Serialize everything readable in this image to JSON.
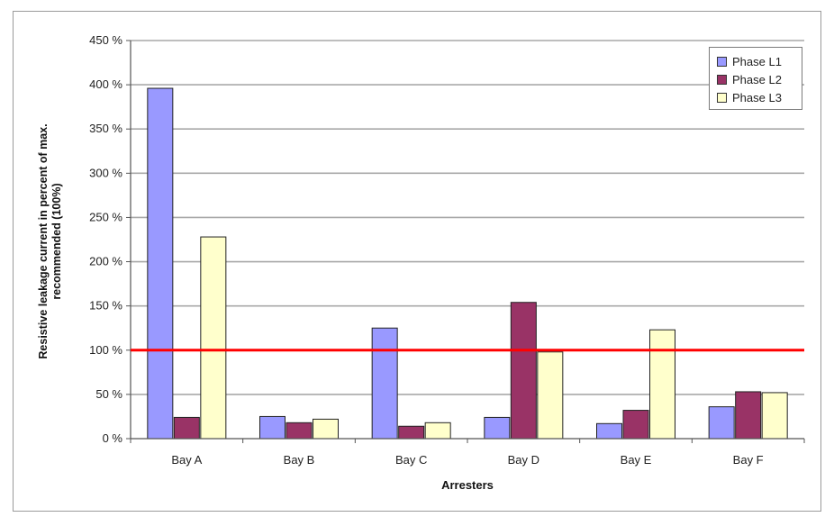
{
  "chart_data": {
    "type": "bar",
    "title": "",
    "xlabel": "Arresters",
    "ylabel": "Resistive leakage current in percent of max. recommended (100%)",
    "categories": [
      "Bay A",
      "Bay B",
      "Bay C",
      "Bay D",
      "Bay E",
      "Bay F"
    ],
    "series": [
      {
        "name": "Phase L1",
        "color": "#9999ff",
        "values": [
          396,
          25,
          125,
          24,
          17,
          36
        ]
      },
      {
        "name": "Phase L2",
        "color": "#993366",
        "values": [
          24,
          18,
          14,
          154,
          32,
          53
        ]
      },
      {
        "name": "Phase L3",
        "color": "#ffffcc",
        "values": [
          228,
          22,
          18,
          98,
          123,
          52
        ]
      }
    ],
    "ylim": [
      0,
      450
    ],
    "yticks": [
      0,
      50,
      100,
      150,
      200,
      250,
      300,
      350,
      400,
      450
    ],
    "ytick_labels": [
      "0 %",
      "50 %",
      "100 %",
      "150 %",
      "200 %",
      "250 %",
      "300 %",
      "350 %",
      "400 %",
      "450 %"
    ],
    "reference_line": {
      "value": 100,
      "color": "#ff0000"
    },
    "grid": true,
    "legend_position": "top-right"
  }
}
